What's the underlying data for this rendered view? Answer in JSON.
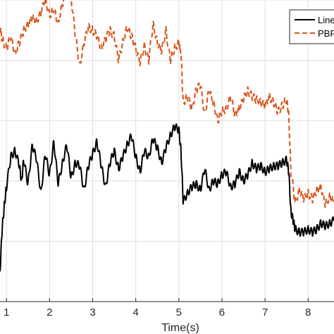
{
  "chart_data": {
    "type": "line",
    "title": "",
    "xlabel": "Time(s)",
    "ylabel": "",
    "xlim": [
      0.85,
      8.6
    ],
    "ylim": [
      0,
      100
    ],
    "x_ticks": [
      1,
      2,
      3,
      4,
      5,
      6,
      7,
      8
    ],
    "x_tick_labels": [
      "1",
      "2",
      "3",
      "4",
      "5",
      "6",
      "7",
      "8"
    ],
    "grid": true,
    "legend_position": "top-right",
    "series": [
      {
        "name": "Linea",
        "color": "#000000",
        "line_style": "solid",
        "x": [
          0.85,
          0.9,
          0.95,
          1.0,
          1.1,
          1.2,
          1.3,
          1.35,
          1.4,
          1.5,
          1.6,
          1.7,
          1.8,
          1.9,
          2.0,
          2.1,
          2.2,
          2.3,
          2.4,
          2.5,
          2.6,
          2.7,
          2.8,
          2.9,
          3.0,
          3.1,
          3.2,
          3.3,
          3.4,
          3.5,
          3.6,
          3.7,
          3.8,
          3.9,
          4.0,
          4.1,
          4.2,
          4.3,
          4.4,
          4.5,
          4.6,
          4.7,
          4.8,
          4.9,
          5.0,
          5.05,
          5.1,
          5.2,
          5.3,
          5.4,
          5.5,
          5.6,
          5.7,
          5.8,
          5.9,
          6.0,
          6.1,
          6.2,
          6.3,
          6.4,
          6.5,
          6.6,
          6.7,
          6.8,
          6.9,
          7.0,
          7.1,
          7.2,
          7.3,
          7.4,
          7.5,
          7.55,
          7.6,
          7.65,
          7.7,
          7.8,
          7.9,
          8.0,
          8.1,
          8.2,
          8.3,
          8.4,
          8.5,
          8.6
        ],
        "y": [
          10,
          24,
          32,
          38,
          48,
          50,
          45,
          40,
          47,
          39,
          52,
          47,
          36,
          49,
          42,
          53,
          39,
          46,
          52,
          41,
          46,
          45,
          37,
          45,
          49,
          53,
          45,
          38,
          46,
          50,
          44,
          48,
          52,
          55,
          48,
          43,
          50,
          48,
          54,
          51,
          46,
          51,
          55,
          58,
          57,
          50,
          33,
          36,
          38,
          39,
          37,
          44,
          37,
          40,
          39,
          42,
          43,
          38,
          39,
          43,
          40,
          42,
          46,
          44,
          45,
          43,
          44,
          45,
          45,
          46,
          47,
          43,
          30,
          27,
          24,
          23,
          23,
          24,
          23,
          24,
          26,
          25,
          26,
          27
        ]
      },
      {
        "name": "PBF",
        "color": "#d95319",
        "line_style": "dashed",
        "x": [
          0.85,
          0.9,
          1.0,
          1.1,
          1.2,
          1.3,
          1.4,
          1.5,
          1.6,
          1.7,
          1.8,
          1.9,
          2.0,
          2.1,
          2.2,
          2.3,
          2.4,
          2.5,
          2.6,
          2.7,
          2.8,
          2.9,
          3.0,
          3.1,
          3.2,
          3.3,
          3.4,
          3.5,
          3.6,
          3.7,
          3.8,
          3.9,
          4.0,
          4.1,
          4.2,
          4.3,
          4.4,
          4.5,
          4.6,
          4.7,
          4.8,
          4.9,
          5.0,
          5.05,
          5.1,
          5.2,
          5.3,
          5.4,
          5.5,
          5.6,
          5.7,
          5.8,
          5.9,
          6.0,
          6.1,
          6.2,
          6.3,
          6.4,
          6.5,
          6.6,
          6.7,
          6.8,
          6.9,
          7.0,
          7.1,
          7.2,
          7.3,
          7.4,
          7.5,
          7.55,
          7.6,
          7.7,
          7.8,
          7.9,
          8.0,
          8.1,
          8.2,
          8.3,
          8.4,
          8.5,
          8.6
        ],
        "y": [
          91,
          87,
          84,
          88,
          82,
          86,
          90,
          92,
          94,
          93,
          96,
          100,
          95,
          97,
          92,
          99,
          103,
          101,
          88,
          78,
          86,
          91,
          90,
          88,
          84,
          87,
          90,
          88,
          80,
          86,
          91,
          88,
          84,
          79,
          85,
          80,
          92,
          86,
          83,
          90,
          80,
          84,
          86,
          82,
          66,
          68,
          64,
          70,
          72,
          62,
          70,
          66,
          60,
          63,
          64,
          68,
          62,
          64,
          67,
          70,
          68,
          67,
          66,
          65,
          68,
          66,
          63,
          65,
          67,
          62,
          43,
          33,
          37,
          34,
          36,
          34,
          37,
          38,
          32,
          35,
          33
        ]
      }
    ]
  }
}
